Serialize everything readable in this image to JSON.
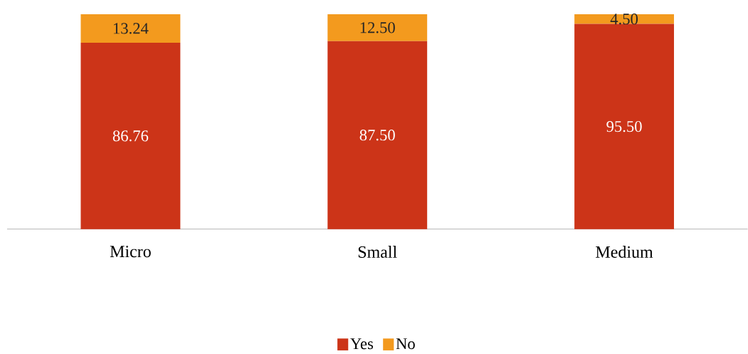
{
  "chart_data": {
    "type": "bar",
    "stacked": true,
    "categories": [
      "Micro",
      "Small",
      "Medium"
    ],
    "series": [
      {
        "name": "Yes",
        "color": "#cc3418",
        "values": [
          86.76,
          87.5,
          95.5
        ],
        "value_labels": [
          "86.76",
          "87.50",
          "95.50"
        ]
      },
      {
        "name": "No",
        "color": "#f39a1e",
        "values": [
          13.24,
          12.5,
          4.5
        ],
        "value_labels": [
          "13.24",
          "12.50",
          "4.50"
        ]
      }
    ],
    "legend": "bottom"
  }
}
